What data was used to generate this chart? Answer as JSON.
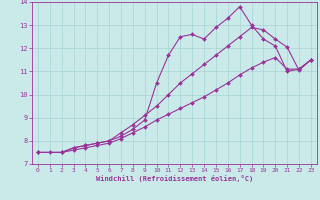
{
  "xlabel": "Windchill (Refroidissement éolien,°C)",
  "background_color": "#caeaea",
  "grid_color": "#aad4d4",
  "line_color": "#993399",
  "xlim": [
    -0.5,
    23.5
  ],
  "ylim": [
    7,
    14
  ],
  "xticks": [
    0,
    1,
    2,
    3,
    4,
    5,
    6,
    7,
    8,
    9,
    10,
    11,
    12,
    13,
    14,
    15,
    16,
    17,
    18,
    19,
    20,
    21,
    22,
    23
  ],
  "yticks": [
    7,
    8,
    9,
    10,
    11,
    12,
    13,
    14
  ],
  "line1_x": [
    0,
    1,
    2,
    3,
    4,
    5,
    6,
    7,
    8,
    9,
    10,
    11,
    12,
    13,
    14,
    15,
    16,
    17,
    18,
    19,
    20,
    21,
    22,
    23
  ],
  "line1_y": [
    7.5,
    7.5,
    7.5,
    7.7,
    7.8,
    7.9,
    8.0,
    8.2,
    8.5,
    8.9,
    10.5,
    11.7,
    12.5,
    12.6,
    12.4,
    12.9,
    13.3,
    13.8,
    13.0,
    12.4,
    12.1,
    11.0,
    11.1,
    11.5
  ],
  "line2_x": [
    0,
    2,
    3,
    4,
    5,
    6,
    7,
    8,
    9,
    10,
    11,
    12,
    13,
    14,
    15,
    16,
    17,
    18,
    19,
    20,
    21,
    22,
    23
  ],
  "line2_y": [
    7.5,
    7.5,
    7.7,
    7.8,
    7.9,
    8.0,
    8.35,
    8.7,
    9.1,
    9.5,
    10.0,
    10.5,
    10.9,
    11.3,
    11.7,
    12.1,
    12.5,
    12.9,
    12.8,
    12.4,
    12.05,
    11.05,
    11.5
  ],
  "line3_x": [
    0,
    2,
    3,
    4,
    5,
    6,
    7,
    8,
    9,
    10,
    11,
    12,
    13,
    14,
    15,
    16,
    17,
    18,
    19,
    20,
    21,
    22,
    23
  ],
  "line3_y": [
    7.5,
    7.5,
    7.6,
    7.7,
    7.8,
    7.9,
    8.1,
    8.35,
    8.6,
    8.9,
    9.15,
    9.4,
    9.65,
    9.9,
    10.2,
    10.5,
    10.85,
    11.15,
    11.4,
    11.6,
    11.1,
    11.1,
    11.5
  ]
}
